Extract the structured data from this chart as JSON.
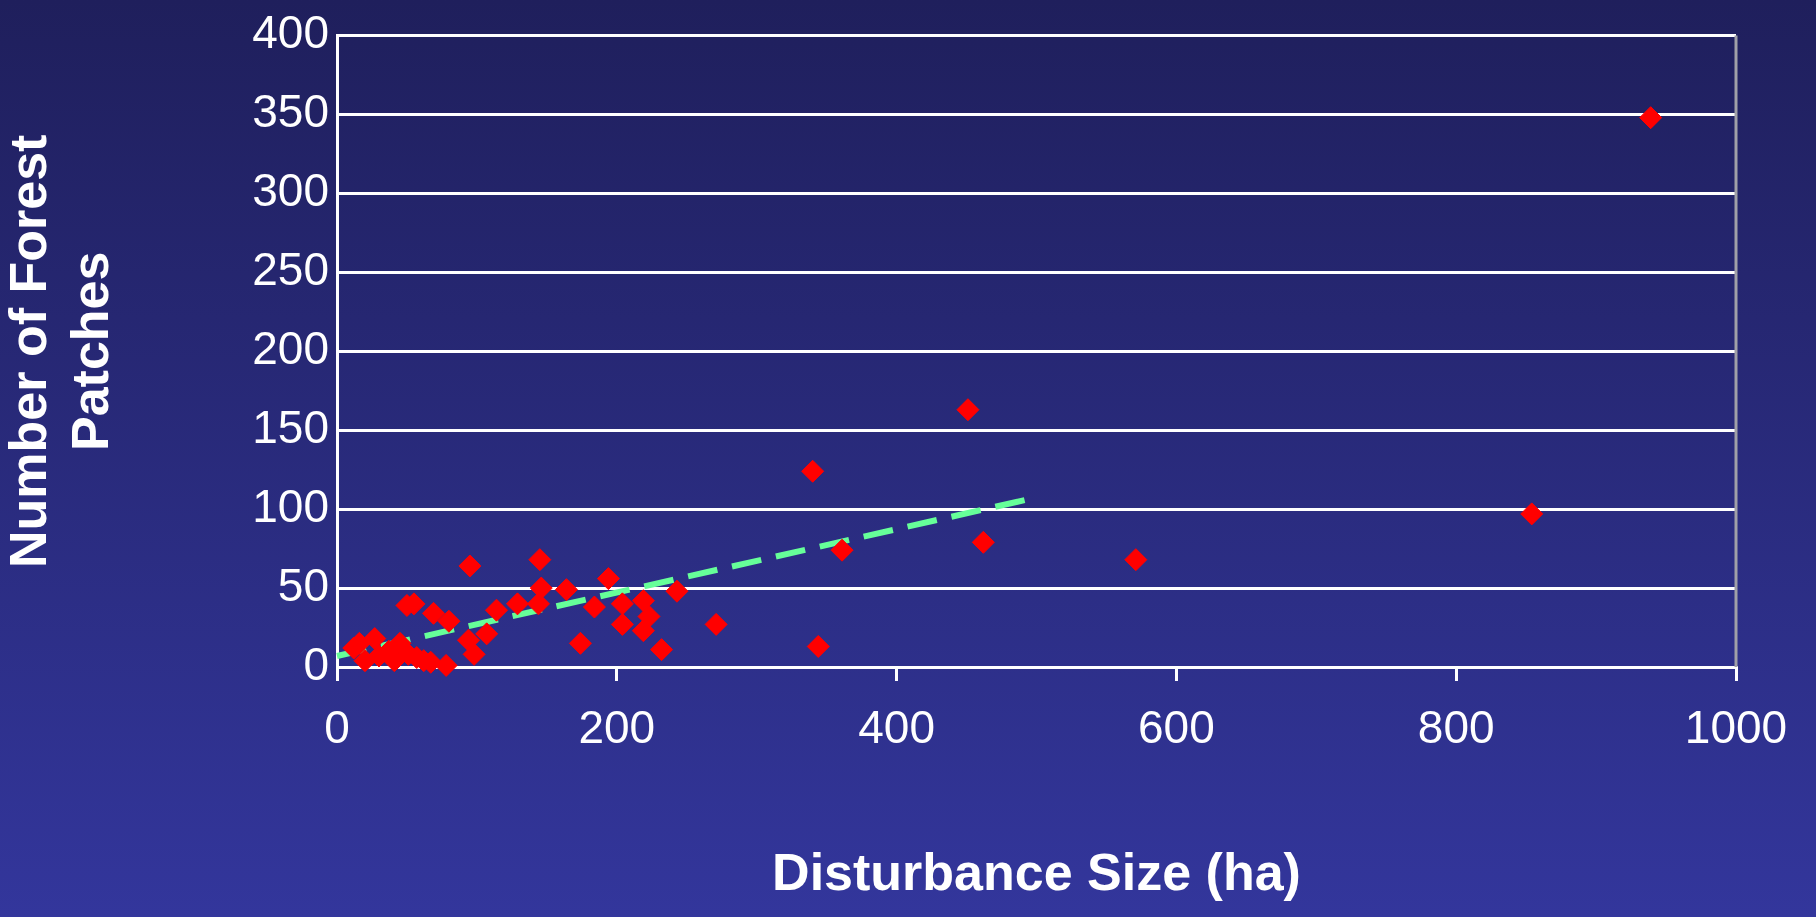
{
  "chart_data": {
    "type": "scatter",
    "xlabel": "Disturbance Size (ha)",
    "ylabel": "Number of Forest Patches",
    "xlim": [
      0,
      1000
    ],
    "xticks": [
      0,
      200,
      400,
      600,
      800,
      1000
    ],
    "ylim": [
      0,
      400
    ],
    "yticks": [
      0,
      50,
      100,
      150,
      200,
      250,
      300,
      350,
      400
    ],
    "grid": "y",
    "legend": false,
    "marker": "diamond",
    "series": [
      {
        "color": "#ff0000",
        "x": [
          939,
          451,
          340,
          854,
          462,
          361,
          571,
          145,
          95,
          194,
          146,
          164,
          243,
          219,
          204,
          129,
          144,
          50,
          55,
          184,
          114,
          69,
          80,
          223,
          204,
          271,
          219,
          107,
          94,
          174,
          98,
          344,
          232,
          78,
          12,
          16,
          20,
          27,
          30,
          37,
          41,
          45,
          51,
          57,
          62,
          67
        ],
        "values": [
          348,
          163,
          124,
          97,
          79,
          74,
          68,
          68,
          64,
          56,
          50,
          49,
          48,
          42,
          40,
          40,
          40,
          39,
          40,
          38,
          36,
          34,
          29,
          32,
          27,
          27,
          23,
          21,
          17,
          15,
          8,
          13,
          11,
          1,
          12,
          15,
          4,
          18,
          7,
          10,
          4,
          15,
          8,
          6,
          4,
          3
        ]
      },
      {
        "type": "line",
        "color": "#66ff99",
        "line_style": "dashed",
        "marker": "none",
        "x": [
          0,
          493
        ],
        "values": [
          7,
          106
        ]
      }
    ]
  }
}
